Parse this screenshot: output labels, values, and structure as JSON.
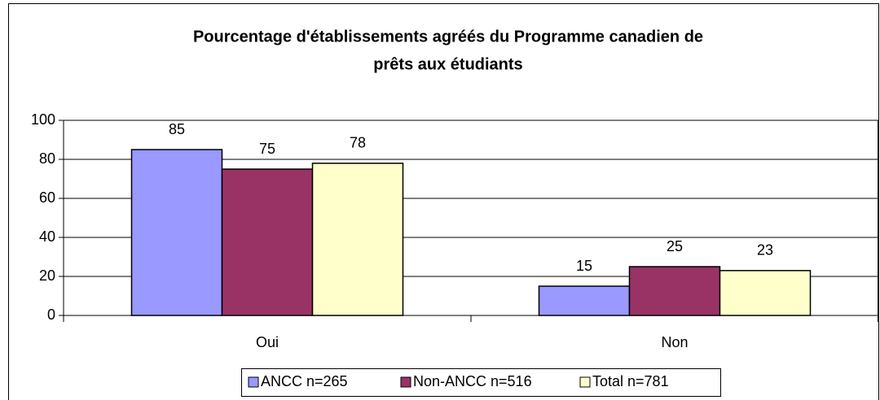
{
  "chart_data": {
    "type": "bar",
    "title": [
      "Pourcentage d'établissements agréés du Programme canadien de",
      "prêts aux étudiants"
    ],
    "categories": [
      "Oui",
      "Non"
    ],
    "series": [
      {
        "name": "ANCC n=265",
        "color": "#9999ff",
        "values": [
          85,
          15
        ]
      },
      {
        "name": "Non-ANCC n=516",
        "color": "#993366",
        "values": [
          75,
          25
        ]
      },
      {
        "name": "Total n=781",
        "color": "#ffffcc",
        "values": [
          78,
          23
        ]
      }
    ],
    "ylim": [
      0,
      100
    ],
    "yticks": [
      0,
      20,
      40,
      60,
      80,
      100
    ],
    "grid": true,
    "legend": "bottom"
  }
}
